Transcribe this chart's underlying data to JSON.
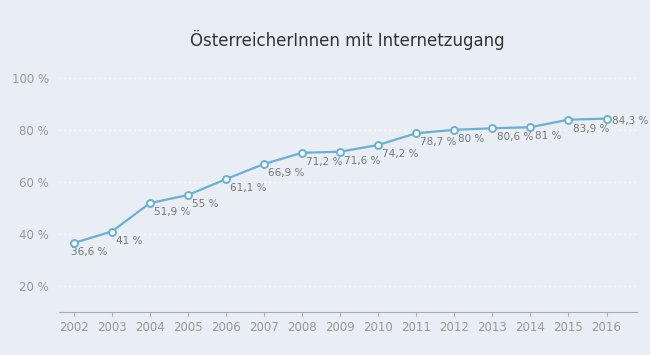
{
  "title": "ÖsterreicherInnen mit Internetzugang",
  "years": [
    2002,
    2003,
    2004,
    2005,
    2006,
    2007,
    2008,
    2009,
    2010,
    2011,
    2012,
    2013,
    2014,
    2015,
    2016
  ],
  "values": [
    36.6,
    41.0,
    51.9,
    55.0,
    61.1,
    66.9,
    71.2,
    71.6,
    74.2,
    78.7,
    80.0,
    80.6,
    81.0,
    83.9,
    84.3
  ],
  "labels": [
    "36,6 %",
    "41 %",
    "51,9 %",
    "55 %",
    "61,1 %",
    "66,9 %",
    "71,2 %",
    "71,6 %",
    "74,2 %",
    "78,7 %",
    "80 %",
    "80,6 %",
    "81 %",
    "83,9 %",
    "84,3 %"
  ],
  "line_color": "#6ab0d4",
  "marker_color": "#6ab0d4",
  "marker_face": "#ffffff",
  "background_color": "#e8eef4",
  "plot_bg": "#e8eef4",
  "grid_color": "#ffffff",
  "axis_color": "#aaaaaa",
  "tick_color": "#999999",
  "title_color": "#333333",
  "label_color": "#777777",
  "ylim": [
    10,
    108
  ],
  "yticks": [
    20,
    40,
    60,
    80,
    100
  ],
  "ytick_labels": [
    "20 %",
    "40 %",
    "60 %",
    "80 %",
    "100 %"
  ],
  "title_fontsize": 12,
  "label_fontsize": 7.5,
  "tick_fontsize": 8.5
}
